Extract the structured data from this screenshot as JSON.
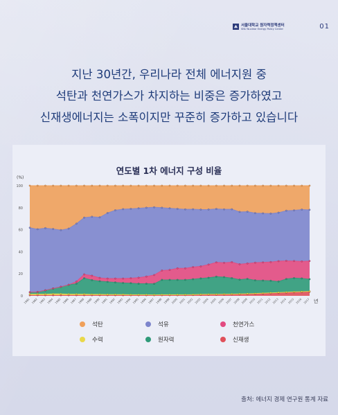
{
  "header": {
    "org_name": "서울대학교 원자력정책센터",
    "org_name_en": "SNU Nuclear Energy Policy Center",
    "page_number": "01"
  },
  "headline": {
    "line1": "지난 30년간, 우리나라 전체 에너지원 중",
    "line2": "석탄과 천연가스가 차지하는 비중은 증가하였고",
    "line3": "신재생에너지는 소폭이지만 꾸준히 증가하고 있습니다"
  },
  "source": "출처: 에너지 경제 연구원 통계 자료",
  "colors": {
    "coal": "#f0a05a",
    "oil": "#7d85cc",
    "gas": "#e24a80",
    "hydro": "#e9d84a",
    "nuclear": "#2f9a78",
    "renewable": "#e0505a",
    "headline": "#1f3c7a"
  },
  "chart_data": {
    "type": "area",
    "stacked": true,
    "title": "연도별 1차 에너지 구성 비율",
    "ylabel": "(%)",
    "xlabel": "년",
    "ylim": [
      0,
      100
    ],
    "yticks": [
      0,
      20,
      40,
      60,
      80,
      100
    ],
    "grid": false,
    "legend_position": "bottom",
    "x": [
      1981,
      1982,
      1983,
      1984,
      1985,
      1986,
      1987,
      1988,
      1989,
      1990,
      1991,
      1992,
      1993,
      1994,
      1995,
      1996,
      1997,
      1998,
      1999,
      2000,
      2001,
      2002,
      2003,
      2004,
      2005,
      2006,
      2007,
      2008,
      2009,
      2010,
      2011,
      2012,
      2013,
      2014,
      2015,
      2016,
      2017
    ],
    "series": [
      {
        "name": "신재생",
        "key": "renewable",
        "values": [
          0.5,
          0.5,
          0.5,
          0.5,
          0.5,
          0.5,
          0.5,
          0.5,
          0.5,
          0.5,
          0.5,
          0.5,
          0.5,
          0.5,
          0.5,
          0.5,
          0.5,
          0.5,
          0.5,
          0.5,
          0.6,
          0.7,
          0.8,
          0.9,
          1.0,
          1.1,
          1.2,
          1.3,
          1.5,
          1.7,
          2.0,
          2.3,
          2.6,
          2.9,
          3.2,
          3.4,
          3.7
        ]
      },
      {
        "name": "수력",
        "key": "hydro",
        "values": [
          1.0,
          1.0,
          1.0,
          1.2,
          1.2,
          1.0,
          1.0,
          1.0,
          0.8,
          0.8,
          0.7,
          0.7,
          0.7,
          0.5,
          0.5,
          0.5,
          0.4,
          0.5,
          0.5,
          0.5,
          0.4,
          0.4,
          0.5,
          0.5,
          0.4,
          0.4,
          0.4,
          0.4,
          0.4,
          0.4,
          0.4,
          0.4,
          0.4,
          0.4,
          0.4,
          0.4,
          0.4
        ]
      },
      {
        "name": "원자력",
        "key": "nuclear",
        "values": [
          1.8,
          2.0,
          3.5,
          5.0,
          6.5,
          8.5,
          9.5,
          14.5,
          13.0,
          12.0,
          11.5,
          11.0,
          10.5,
          10.5,
          10.0,
          10.0,
          10.0,
          13.5,
          13.5,
          13.5,
          13.5,
          14.0,
          14.5,
          15.0,
          16.0,
          15.5,
          14.5,
          13.0,
          13.5,
          12.0,
          11.5,
          11.0,
          10.0,
          12.0,
          12.5,
          12.0,
          11.0
        ]
      },
      {
        "name": "천연가스",
        "key": "gas",
        "values": [
          0,
          0,
          0,
          0,
          0,
          0,
          2.0,
          3.5,
          4.0,
          3.0,
          3.0,
          3.5,
          4.0,
          4.5,
          5.5,
          6.5,
          8.0,
          8.5,
          9.0,
          10.5,
          10.5,
          11.0,
          11.0,
          12.0,
          13.0,
          13.0,
          14.5,
          14.0,
          14.0,
          16.0,
          16.5,
          17.0,
          18.5,
          16.5,
          15.5,
          15.5,
          16.5
        ]
      },
      {
        "name": "석유",
        "key": "oil",
        "values": [
          58.5,
          57.0,
          56.5,
          54.0,
          51.5,
          51.0,
          52.5,
          51.5,
          53.5,
          55.0,
          59.5,
          62.0,
          63.0,
          63.0,
          63.0,
          62.5,
          61.5,
          57.0,
          56.0,
          54.0,
          53.5,
          52.5,
          51.5,
          50.0,
          48.5,
          48.5,
          48.0,
          47.5,
          47.0,
          45.0,
          44.5,
          44.0,
          44.0,
          45.5,
          46.0,
          47.0,
          46.5
        ]
      },
      {
        "name": "석탄",
        "key": "coal",
        "values": [
          38.2,
          39.5,
          38.5,
          39.3,
          40.3,
          39.0,
          34.5,
          29.0,
          28.2,
          28.7,
          24.8,
          22.3,
          21.3,
          21.0,
          20.5,
          20.0,
          19.6,
          20.0,
          20.5,
          21.0,
          21.5,
          21.4,
          21.7,
          21.6,
          21.1,
          21.5,
          21.4,
          23.8,
          23.6,
          24.9,
          25.1,
          25.3,
          24.5,
          22.7,
          22.4,
          21.7,
          21.9
        ]
      }
    ],
    "legend": [
      {
        "name": "석탄",
        "key": "coal"
      },
      {
        "name": "석유",
        "key": "oil"
      },
      {
        "name": "천연가스",
        "key": "gas"
      },
      {
        "name": "수력",
        "key": "hydro"
      },
      {
        "name": "원자력",
        "key": "nuclear"
      },
      {
        "name": "신재생",
        "key": "renewable"
      }
    ]
  }
}
